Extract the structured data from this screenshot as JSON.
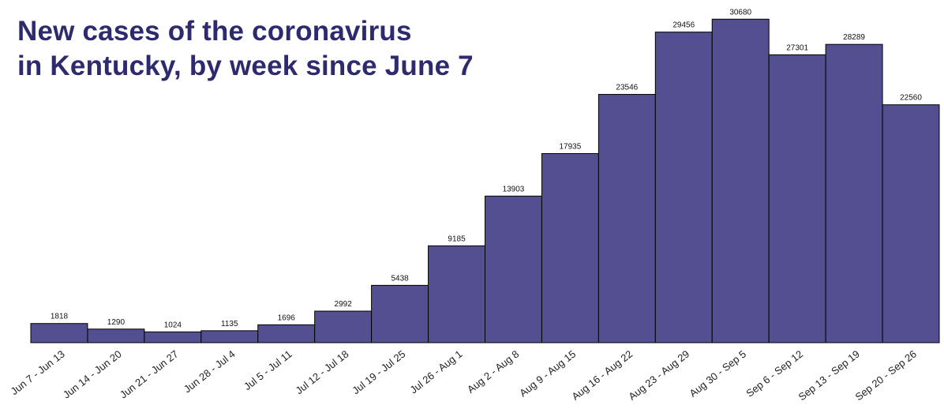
{
  "title_lines": [
    "New cases of the coronavirus",
    "in Kentucky, by week since June 7"
  ],
  "colors": {
    "bar": "#544f91",
    "title": "#2e2a6e"
  },
  "chart_data": {
    "type": "bar",
    "title": "New cases of the coronavirus in Kentucky, by week since June 7",
    "xlabel": "",
    "ylabel": "",
    "ylim": [
      0,
      31000
    ],
    "grid": false,
    "categories": [
      "Jun 7 - Jun 13",
      "Jun 14 - Jun 20",
      "Jun 21 - Jun 27",
      "Jun 28 - Jul 4",
      "Jul 5 - Jul 11",
      "Jul 12 - Jul 18",
      "Jul 19 - Jul 25",
      "Jul 26 - Aug 1",
      "Aug 2 - Aug 8",
      "Aug 9 - Aug 15",
      "Aug 16 - Aug 22",
      "Aug 23 - Aug 29",
      "Aug 30 - Sep 5",
      "Sep 6 - Sep 12",
      "Sep 13 - Sep 19",
      "Sep 20 - Sep 26"
    ],
    "values": [
      1818,
      1290,
      1024,
      1135,
      1696,
      2992,
      5438,
      9185,
      13903,
      17935,
      23546,
      29456,
      30680,
      27301,
      28289,
      22560
    ]
  }
}
